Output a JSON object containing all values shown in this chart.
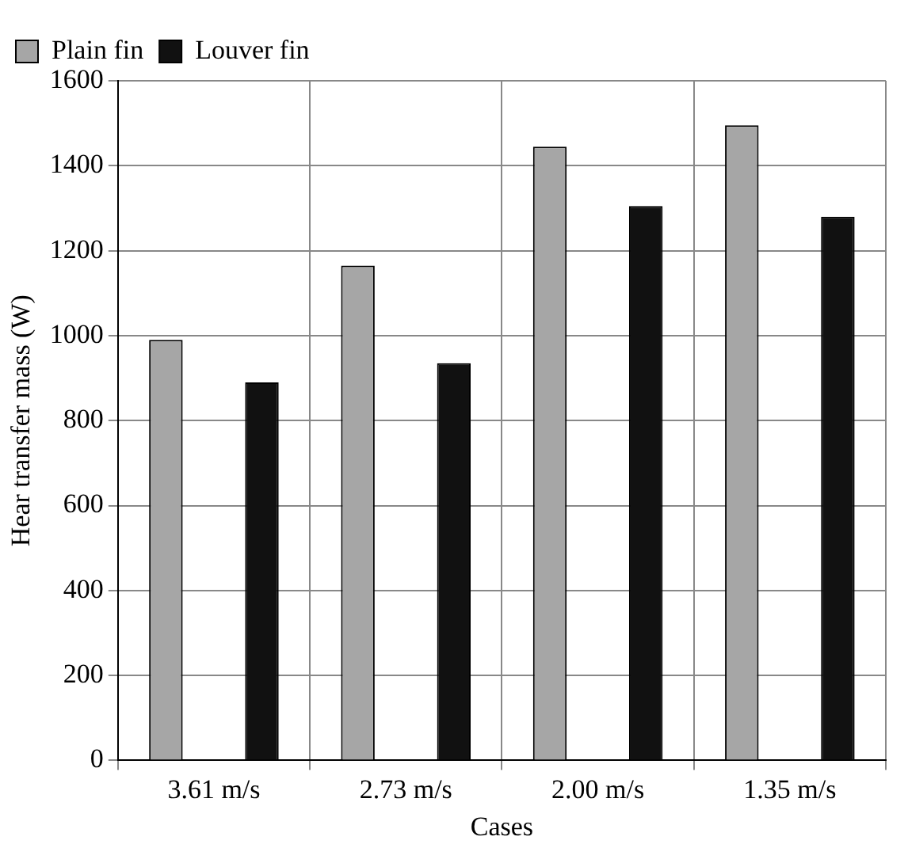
{
  "chart_data": {
    "type": "bar",
    "xlabel": "Cases",
    "ylabel": "Hear transfer mass (W)",
    "categories": [
      "3.61 m/s",
      "2.73 m/s",
      "2.00 m/s",
      "1.35 m/s"
    ],
    "series": [
      {
        "name": "Plain fin",
        "color": "#a6a6a6",
        "values": [
          990,
          1165,
          1445,
          1495
        ]
      },
      {
        "name": "Louver fin",
        "color": "#111111",
        "values": [
          890,
          935,
          1305,
          1280
        ]
      }
    ],
    "ylim": [
      0,
      1600
    ],
    "yticks": [
      0,
      200,
      400,
      600,
      800,
      1000,
      1200,
      1400,
      1600
    ],
    "grid": true,
    "legend": "top left"
  }
}
